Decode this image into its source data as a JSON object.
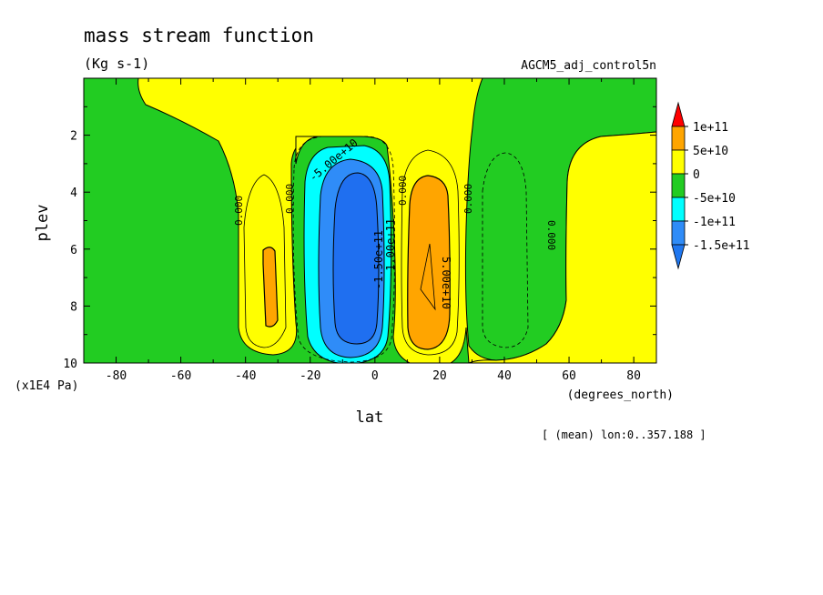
{
  "chart_data": {
    "type": "heatmap",
    "title": "mass stream function",
    "subtitle": "(Kg s-1)",
    "dataset": "AGCM5_adj_control5n",
    "footnote": "[ (mean) lon:0..357.188 ]",
    "xlabel": "lat",
    "x_units": "(degrees_north)",
    "ylabel": "plev",
    "y_units": "(x1E4 Pa)",
    "xlim": [
      -90,
      87
    ],
    "ylim": [
      0,
      10
    ],
    "y_inverted": true,
    "x_ticks": [
      -80,
      -60,
      -40,
      -20,
      0,
      20,
      40,
      60,
      80
    ],
    "y_ticks": [
      2,
      4,
      6,
      8,
      10
    ],
    "colors": {
      "below_-1.5e+11": "#1f77f0",
      "-1.5e+11_to_-1e+11": "#2f8cf8",
      "-1e+11_to_-5e+10": "#00ffff",
      "-5e+10_to_0": "#22cc22",
      "0_to_5e+10": "#ffff00",
      "5e+10_to_1e+11": "#ffa500",
      "above_1e+11": "#ff0000"
    },
    "legend": {
      "labels": [
        "1e+11",
        "5e+10",
        "0",
        "-5e+10",
        "-1e+11",
        "-1.5e+11"
      ],
      "colors": [
        "#ff0000",
        "#ffa500",
        "#ffff00",
        "#22cc22",
        "#00ffff",
        "#2f8cf8",
        "#1f77f0"
      ]
    },
    "contour_labels": [
      {
        "text": "-5.00e+10",
        "lat": -10,
        "plev": 2.9
      },
      {
        "text": "-1.00e+11",
        "lat": 5.5,
        "plev": 6.5
      },
      {
        "text": "-1.50e+11",
        "lat": 2,
        "plev": 6.5
      },
      {
        "text": "5.00e+10",
        "lat": 24,
        "plev": 7.5
      },
      {
        "text": "0.000",
        "lat": -40,
        "plev": 4.8
      },
      {
        "text": "0.000",
        "lat": -25,
        "plev": 4.3
      },
      {
        "text": "0.000",
        "lat": 10,
        "plev": 4.0
      },
      {
        "text": "0.000",
        "lat": 30,
        "plev": 4.3
      },
      {
        "text": "0.000",
        "lat": 57,
        "plev": 5.8
      }
    ]
  }
}
